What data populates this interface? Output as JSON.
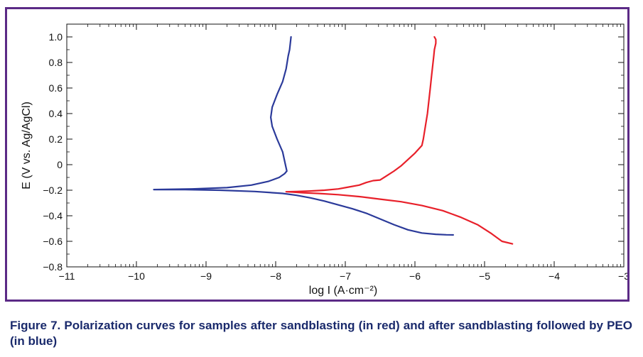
{
  "chart_data": {
    "type": "line",
    "xlabel": "log I (A·cm⁻²)",
    "ylabel": "E (V vs. Ag/AgCl)",
    "xlim": [
      -11,
      -3
    ],
    "ylim": [
      -0.8,
      1.1
    ],
    "x_ticks": [
      -11,
      -10,
      -9,
      -8,
      -7,
      -6,
      -5,
      -4,
      -3
    ],
    "x_tick_labels": [
      "−11",
      "−10",
      "−9",
      "−8",
      "−7",
      "−6",
      "−5",
      "−4",
      "−3"
    ],
    "y_ticks": [
      -0.8,
      -0.6,
      -0.4,
      -0.2,
      0,
      0.2,
      0.4,
      0.6,
      0.8,
      1.0
    ],
    "y_tick_labels": [
      "−0.8",
      "−0.6",
      "−0.4",
      "−0.2",
      "0",
      "0.2",
      "0.4",
      "0.6",
      "0.8",
      "1.0"
    ],
    "grid": false,
    "series": [
      {
        "color": "#e8202a",
        "x": [
          -4.6,
          -4.75,
          -4.9,
          -5.1,
          -5.35,
          -5.6,
          -5.9,
          -6.2,
          -6.5,
          -6.8,
          -7.1,
          -7.4,
          -7.6,
          -7.75,
          -7.85,
          -7.7,
          -7.5,
          -7.3,
          -7.1,
          -6.95,
          -6.8,
          -6.7,
          -6.6,
          -6.5,
          -6.4,
          -6.3,
          -6.2,
          -6.1,
          -6.0,
          -5.95,
          -5.9,
          -5.88,
          -5.85,
          -5.82,
          -5.8,
          -5.78,
          -5.76,
          -5.75,
          -5.74,
          -5.73,
          -5.72,
          -5.7,
          -5.7,
          -5.72
        ],
        "y": [
          -0.62,
          -0.6,
          -0.54,
          -0.47,
          -0.41,
          -0.36,
          -0.32,
          -0.29,
          -0.27,
          -0.25,
          -0.235,
          -0.225,
          -0.22,
          -0.215,
          -0.212,
          -0.21,
          -0.206,
          -0.2,
          -0.19,
          -0.175,
          -0.16,
          -0.14,
          -0.125,
          -0.12,
          -0.085,
          -0.05,
          -0.01,
          0.04,
          0.09,
          0.12,
          0.15,
          0.2,
          0.3,
          0.4,
          0.5,
          0.6,
          0.7,
          0.75,
          0.8,
          0.85,
          0.9,
          0.95,
          0.98,
          1.0
        ]
      },
      {
        "color": "#2b3a9a",
        "x": [
          -5.45,
          -5.55,
          -5.7,
          -5.9,
          -6.1,
          -6.3,
          -6.5,
          -6.7,
          -6.9,
          -7.1,
          -7.3,
          -7.5,
          -7.7,
          -7.9,
          -8.3,
          -8.8,
          -9.3,
          -9.75,
          -9.2,
          -8.7,
          -8.35,
          -8.1,
          -7.95,
          -7.87,
          -7.84,
          -7.86,
          -7.9,
          -7.98,
          -8.05,
          -8.07,
          -8.05,
          -7.98,
          -7.9,
          -7.85,
          -7.82,
          -7.8,
          -7.79,
          -7.78
        ],
        "y": [
          -0.55,
          -0.549,
          -0.545,
          -0.535,
          -0.51,
          -0.47,
          -0.425,
          -0.38,
          -0.345,
          -0.315,
          -0.285,
          -0.26,
          -0.24,
          -0.225,
          -0.21,
          -0.2,
          -0.195,
          -0.195,
          -0.19,
          -0.18,
          -0.16,
          -0.13,
          -0.1,
          -0.07,
          -0.05,
          0.0,
          0.1,
          0.2,
          0.3,
          0.37,
          0.45,
          0.55,
          0.65,
          0.75,
          0.85,
          0.9,
          0.95,
          1.0
        ]
      }
    ]
  },
  "caption": "Figure 7. Polarization curves for samples after sandblasting (in red) and after sandblasting followed by PEO (in blue)"
}
